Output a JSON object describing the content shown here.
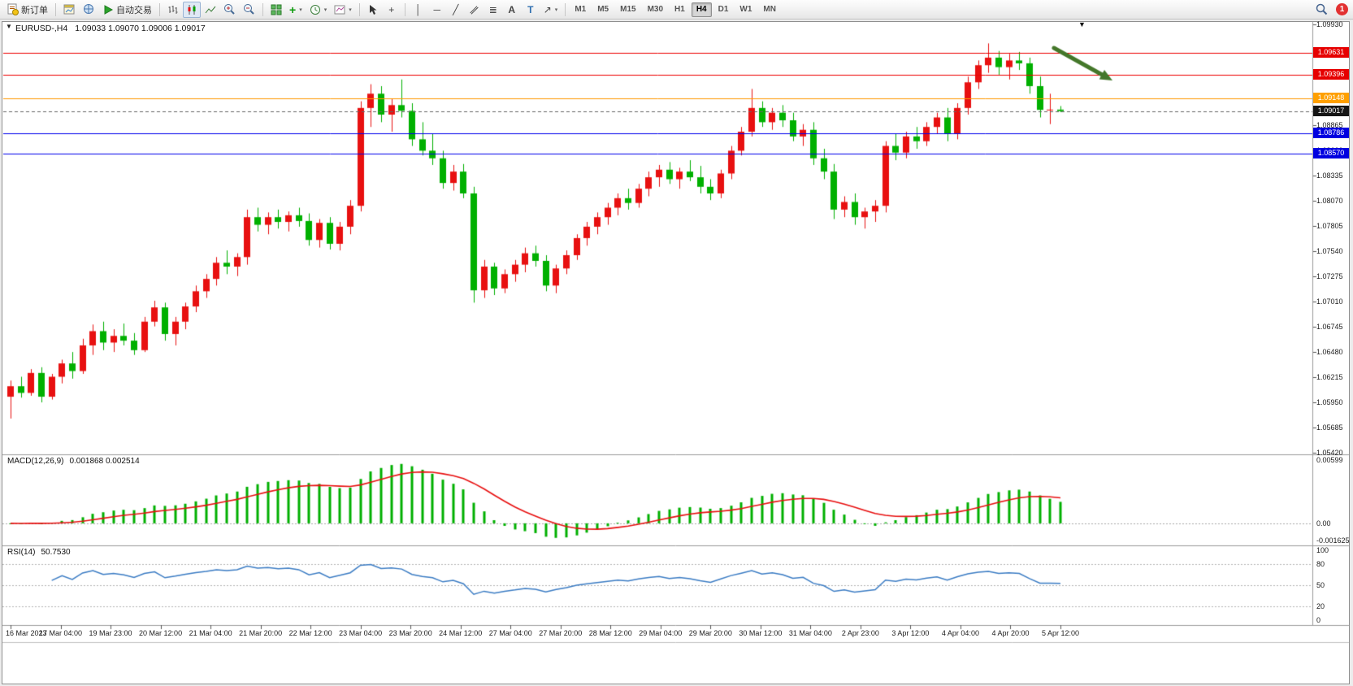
{
  "toolbar": {
    "new_order_label": "新订单",
    "autotrading_label": "自动交易",
    "timeframes": [
      "M1",
      "M5",
      "M15",
      "M30",
      "H1",
      "H4",
      "D1",
      "W1",
      "MN"
    ],
    "active_timeframe": "H4",
    "notification_count": "1"
  },
  "icons": {
    "collapse": "▼",
    "shift": "▼",
    "caret": "▾",
    "crosshair": "+",
    "indicators_plus": "+",
    "vline": "│",
    "hline": "─",
    "trendline": "╱",
    "channel": "∥",
    "fibonacci": "≣",
    "text_tool": "A",
    "label_tool": "T",
    "arrows_tool": "↗"
  },
  "chart": {
    "symbol_label": "EURUSD-,H4",
    "ohlc_label": "1.09033 1.09070 1.09006 1.09017",
    "price_max": 1.0993,
    "price_min": 1.0542,
    "price_axis_labels": [
      "1.09930",
      "1.08865",
      "1.08600",
      "1.08335",
      "1.08070",
      "1.07805",
      "1.07540",
      "1.07275",
      "1.07010",
      "1.06745",
      "1.06480",
      "1.06215",
      "1.05950",
      "1.05685",
      "1.05420"
    ],
    "hlines": [
      {
        "price": 1.09631,
        "label": "1.09631",
        "color": "#ee0000",
        "tag": "#e60000",
        "dashed": false
      },
      {
        "price": 1.09396,
        "label": "1.09396",
        "color": "#ee0000",
        "tag": "#e60000",
        "dashed": false
      },
      {
        "price": 1.09148,
        "label": "1.09148",
        "color": "#ff9900",
        "tag": "#ffa000",
        "dashed": false
      },
      {
        "price": 1.09017,
        "label": "1.09017",
        "color": "#666666",
        "tag": "#151515",
        "dashed": true
      },
      {
        "price": 1.08786,
        "label": "1.08786",
        "color": "#0000ee",
        "tag": "#0000e0",
        "dashed": false
      },
      {
        "price": 1.0857,
        "label": "1.08570",
        "color": "#0000ee",
        "tag": "#0000e0",
        "dashed": false
      }
    ],
    "time_axis_labels": [
      "16 Mar 2023",
      "17 Mar 04:00",
      "19 Mar 23:00",
      "20 Mar 12:00",
      "21 Mar 04:00",
      "21 Mar 20:00",
      "22 Mar 12:00",
      "23 Mar 04:00",
      "23 Mar 20:00",
      "24 Mar 12:00",
      "27 Mar 04:00",
      "27 Mar 20:00",
      "28 Mar 12:00",
      "29 Mar 04:00",
      "29 Mar 20:00",
      "30 Mar 12:00",
      "31 Mar 04:00",
      "2 Apr 23:00",
      "3 Apr 12:00",
      "4 Apr 04:00",
      "4 Apr 20:00",
      "5 Apr 12:00"
    ],
    "annotation_arrow_color": "#44772a"
  },
  "macd": {
    "name": "MACD(12,26,9)",
    "values": "0.001868 0.002514",
    "axis_top": "0.00599",
    "axis_zero": "0.00",
    "axis_bottom": "-0.001625",
    "vmax": 0.00599,
    "vmin": -0.001625
  },
  "rsi": {
    "name": "RSI(14)",
    "value": "50.7530",
    "axis": [
      {
        "v": 100,
        "label": "100"
      },
      {
        "v": 80,
        "label": "80"
      },
      {
        "v": 50,
        "label": "50"
      },
      {
        "v": 20,
        "label": "20"
      },
      {
        "v": 0,
        "label": "0"
      }
    ],
    "levels": [
      80,
      50,
      20
    ]
  },
  "chart_data": {
    "type": "candlestick",
    "symbol": "EURUSD",
    "timeframe": "H4",
    "up_color": "#e81010",
    "down_color": "#00b000",
    "price_range": [
      1.0542,
      1.0993
    ],
    "indicators": [
      {
        "type": "MACD",
        "params": [
          12,
          26,
          9
        ],
        "style": "green histogram + red signal line"
      },
      {
        "type": "RSI",
        "params": [
          14
        ],
        "style": "blue line, dashed levels 80/50/20"
      }
    ],
    "candles_ohlc": [
      [
        1.0601,
        1.0618,
        1.0578,
        1.0612
      ],
      [
        1.0612,
        1.0622,
        1.06,
        1.0605
      ],
      [
        1.0605,
        1.063,
        1.0602,
        1.0626
      ],
      [
        1.0626,
        1.0632,
        1.0595,
        1.0601
      ],
      [
        1.0601,
        1.0625,
        1.0598,
        1.0622
      ],
      [
        1.0622,
        1.064,
        1.0615,
        1.0636
      ],
      [
        1.0636,
        1.0648,
        1.062,
        1.0628
      ],
      [
        1.0628,
        1.0662,
        1.0625,
        1.0655
      ],
      [
        1.0655,
        1.0677,
        1.0645,
        1.067
      ],
      [
        1.067,
        1.068,
        1.065,
        1.0658
      ],
      [
        1.0658,
        1.0672,
        1.0648,
        1.0665
      ],
      [
        1.0665,
        1.0678,
        1.0655,
        1.066
      ],
      [
        1.066,
        1.0668,
        1.0645,
        1.065
      ],
      [
        1.065,
        1.0685,
        1.0648,
        1.068
      ],
      [
        1.068,
        1.0702,
        1.0675,
        1.0695
      ],
      [
        1.0695,
        1.07,
        1.066,
        1.0667
      ],
      [
        1.0667,
        1.0685,
        1.0655,
        1.068
      ],
      [
        1.068,
        1.07,
        1.0672,
        1.0696
      ],
      [
        1.0696,
        1.0718,
        1.069,
        1.0712
      ],
      [
        1.0712,
        1.073,
        1.0705,
        1.0725
      ],
      [
        1.0725,
        1.0748,
        1.0718,
        1.0742
      ],
      [
        1.0742,
        1.0755,
        1.073,
        1.0738
      ],
      [
        1.0738,
        1.0752,
        1.0728,
        1.0748
      ],
      [
        1.0748,
        1.0798,
        1.074,
        1.079
      ],
      [
        1.079,
        1.08,
        1.0775,
        1.0782
      ],
      [
        1.0782,
        1.0795,
        1.0772,
        1.079
      ],
      [
        1.079,
        1.0798,
        1.0778,
        1.0785
      ],
      [
        1.0785,
        1.0796,
        1.0775,
        1.0792
      ],
      [
        1.0792,
        1.08,
        1.078,
        1.0786
      ],
      [
        1.0786,
        1.0794,
        1.076,
        1.0766
      ],
      [
        1.0766,
        1.0788,
        1.0758,
        1.0784
      ],
      [
        1.0784,
        1.079,
        1.0756,
        1.0762
      ],
      [
        1.0762,
        1.0785,
        1.0755,
        1.078
      ],
      [
        1.078,
        1.0808,
        1.0772,
        1.0802
      ],
      [
        1.0802,
        1.0912,
        1.0796,
        1.0905
      ],
      [
        1.0905,
        1.093,
        1.0885,
        1.092
      ],
      [
        1.092,
        1.0928,
        1.089,
        1.0898
      ],
      [
        1.0898,
        1.0915,
        1.088,
        1.0908
      ],
      [
        1.0908,
        1.0935,
        1.0895,
        1.0902
      ],
      [
        1.0902,
        1.091,
        1.0865,
        1.0872
      ],
      [
        1.0872,
        1.089,
        1.0855,
        1.086
      ],
      [
        1.086,
        1.0878,
        1.0845,
        1.0852
      ],
      [
        1.0852,
        1.086,
        1.082,
        1.0826
      ],
      [
        1.0826,
        1.0845,
        1.0818,
        1.0838
      ],
      [
        1.0838,
        1.0846,
        1.081,
        1.0815
      ],
      [
        1.0815,
        1.0822,
        1.07,
        1.0713
      ],
      [
        1.0713,
        1.0745,
        1.0705,
        1.0738
      ],
      [
        1.0738,
        1.0742,
        1.0708,
        1.0715
      ],
      [
        1.0715,
        1.0735,
        1.071,
        1.073
      ],
      [
        1.073,
        1.0745,
        1.0722,
        1.074
      ],
      [
        1.074,
        1.0758,
        1.0732,
        1.0752
      ],
      [
        1.0752,
        1.076,
        1.0738,
        1.0744
      ],
      [
        1.0744,
        1.075,
        1.0712,
        1.0718
      ],
      [
        1.0718,
        1.074,
        1.071,
        1.0736
      ],
      [
        1.0736,
        1.0755,
        1.073,
        1.075
      ],
      [
        1.075,
        1.0772,
        1.0745,
        1.0768
      ],
      [
        1.0768,
        1.0785,
        1.076,
        1.078
      ],
      [
        1.078,
        1.0795,
        1.0772,
        1.079
      ],
      [
        1.079,
        1.0805,
        1.0782,
        1.08
      ],
      [
        1.08,
        1.0815,
        1.0792,
        1.081
      ],
      [
        1.081,
        1.082,
        1.0798,
        1.0805
      ],
      [
        1.0805,
        1.0825,
        1.08,
        1.082
      ],
      [
        1.082,
        1.0838,
        1.0812,
        1.0832
      ],
      [
        1.0832,
        1.0845,
        1.0822,
        1.084
      ],
      [
        1.084,
        1.0848,
        1.0825,
        1.083
      ],
      [
        1.083,
        1.0842,
        1.082,
        1.0838
      ],
      [
        1.0838,
        1.085,
        1.0828,
        1.0832
      ],
      [
        1.0832,
        1.0844,
        1.0815,
        1.0822
      ],
      [
        1.0822,
        1.083,
        1.0808,
        1.0815
      ],
      [
        1.0815,
        1.084,
        1.081,
        1.0836
      ],
      [
        1.0836,
        1.0865,
        1.083,
        1.086
      ],
      [
        1.086,
        1.0885,
        1.0855,
        1.088
      ],
      [
        1.088,
        1.0925,
        1.0875,
        1.0905
      ],
      [
        1.0905,
        1.0912,
        1.0885,
        1.089
      ],
      [
        1.089,
        1.0905,
        1.0882,
        1.09
      ],
      [
        1.09,
        1.0908,
        1.0885,
        1.0892
      ],
      [
        1.0892,
        1.09,
        1.087,
        1.0875
      ],
      [
        1.0875,
        1.0888,
        1.0865,
        1.0882
      ],
      [
        1.0882,
        1.089,
        1.0845,
        1.0852
      ],
      [
        1.0852,
        1.0862,
        1.083,
        1.0838
      ],
      [
        1.0838,
        1.0846,
        1.0788,
        1.0798
      ],
      [
        1.0798,
        1.0812,
        1.079,
        1.0806
      ],
      [
        1.0806,
        1.0815,
        1.0782,
        1.079
      ],
      [
        1.079,
        1.08,
        1.0778,
        1.0796
      ],
      [
        1.0796,
        1.0808,
        1.0785,
        1.0802
      ],
      [
        1.0802,
        1.087,
        1.0795,
        1.0865
      ],
      [
        1.0865,
        1.0878,
        1.085,
        1.0858
      ],
      [
        1.0858,
        1.088,
        1.0852,
        1.0875
      ],
      [
        1.0875,
        1.0885,
        1.0862,
        1.087
      ],
      [
        1.087,
        1.089,
        1.0865,
        1.0885
      ],
      [
        1.0885,
        1.09,
        1.0878,
        1.0895
      ],
      [
        1.0895,
        1.0905,
        1.087,
        1.0878
      ],
      [
        1.0878,
        1.091,
        1.0872,
        1.0905
      ],
      [
        1.0905,
        1.0938,
        1.0898,
        1.0932
      ],
      [
        1.0932,
        1.0955,
        1.0925,
        1.095
      ],
      [
        1.095,
        1.0973,
        1.0942,
        1.0958
      ],
      [
        1.0958,
        1.0965,
        1.094,
        1.0948
      ],
      [
        1.0948,
        1.0962,
        1.0935,
        1.0955
      ],
      [
        1.0955,
        1.0964,
        1.0945,
        1.0952
      ],
      [
        1.0952,
        1.0958,
        1.092,
        1.0928
      ],
      [
        1.0928,
        1.0938,
        1.0895,
        1.0903
      ],
      [
        1.0903,
        1.092,
        1.0888,
        1.09033
      ],
      [
        1.09033,
        1.0907,
        1.09006,
        1.09017
      ]
    ]
  }
}
